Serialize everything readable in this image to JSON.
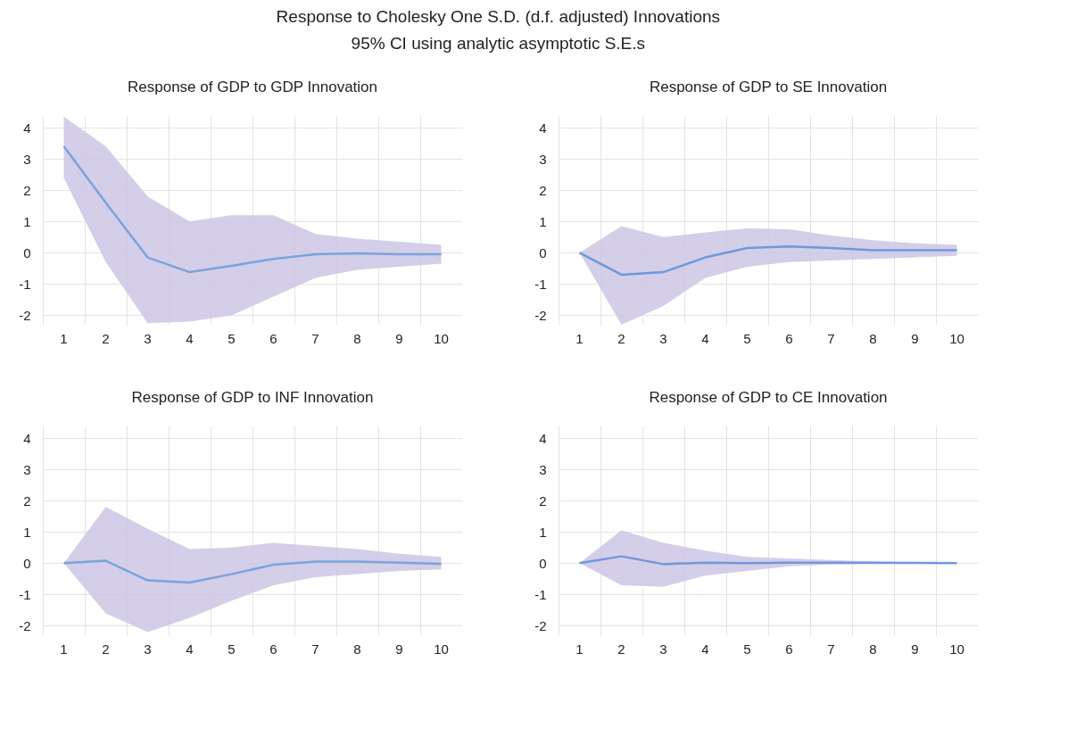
{
  "chart_data": [
    {
      "type": "line",
      "title": "Response of GDP to GDP Innovation",
      "annotations": [
        "Response to Cholesky One S.D. (d.f. adjusted) Innovations",
        "95% CI using analytic asymptotic S.E.s"
      ],
      "categories": [
        "1",
        "2",
        "3",
        "4",
        "5",
        "6",
        "7",
        "8",
        "9",
        "10"
      ],
      "ylim": [
        -2.3,
        4.4
      ],
      "yticks": [
        -2,
        -1,
        0,
        1,
        2,
        3,
        4
      ],
      "grid": true,
      "line_style": "solid",
      "marker": "none",
      "series": [
        {
          "color": "#7aa3dc",
          "values": [
            3.4,
            1.6,
            -0.15,
            -0.62,
            -0.42,
            -0.2,
            -0.05,
            -0.02,
            -0.05,
            -0.05
          ],
          "upper": [
            4.35,
            3.4,
            1.8,
            1.0,
            1.2,
            1.2,
            0.6,
            0.45,
            0.35,
            0.25
          ],
          "lower": [
            2.4,
            -0.3,
            -2.25,
            -2.2,
            -2.0,
            -1.4,
            -0.8,
            -0.55,
            -0.45,
            -0.35
          ]
        }
      ]
    },
    {
      "type": "line",
      "title": "Response of GDP to SE Innovation",
      "categories": [
        "1",
        "2",
        "3",
        "4",
        "5",
        "6",
        "7",
        "8",
        "9",
        "10"
      ],
      "ylim": [
        -2.3,
        4.4
      ],
      "yticks": [
        -2,
        -1,
        0,
        1,
        2,
        3,
        4
      ],
      "grid": true,
      "line_style": "solid",
      "marker": "none",
      "series": [
        {
          "color": "#6f98dc",
          "values": [
            0,
            -0.7,
            -0.62,
            -0.15,
            0.15,
            0.2,
            0.15,
            0.08,
            0.08,
            0.08
          ],
          "upper": [
            0,
            0.85,
            0.5,
            0.65,
            0.78,
            0.75,
            0.55,
            0.4,
            0.3,
            0.25
          ],
          "lower": [
            0,
            -2.3,
            -1.7,
            -0.8,
            -0.45,
            -0.3,
            -0.25,
            -0.2,
            -0.15,
            -0.1
          ]
        }
      ]
    },
    {
      "type": "line",
      "title": "Response of GDP to INF Innovation",
      "categories": [
        "1",
        "2",
        "3",
        "4",
        "5",
        "6",
        "7",
        "8",
        "9",
        "10"
      ],
      "ylim": [
        -2.3,
        4.4
      ],
      "yticks": [
        -2,
        -1,
        0,
        1,
        2,
        3,
        4
      ],
      "grid": true,
      "line_style": "solid",
      "marker": "none",
      "series": [
        {
          "color": "#7aa3dc",
          "values": [
            0,
            0.08,
            -0.55,
            -0.62,
            -0.35,
            -0.05,
            0.05,
            0.05,
            0.02,
            -0.02
          ],
          "upper": [
            0,
            1.8,
            1.1,
            0.45,
            0.5,
            0.65,
            0.55,
            0.45,
            0.3,
            0.2
          ],
          "lower": [
            0,
            -1.6,
            -2.2,
            -1.75,
            -1.2,
            -0.7,
            -0.45,
            -0.35,
            -0.25,
            -0.2
          ]
        }
      ]
    },
    {
      "type": "line",
      "title": "Response of GDP to CE Innovation",
      "categories": [
        "1",
        "2",
        "3",
        "4",
        "5",
        "6",
        "7",
        "8",
        "9",
        "10"
      ],
      "ylim": [
        -2.3,
        4.4
      ],
      "yticks": [
        -2,
        -1,
        0,
        1,
        2,
        3,
        4
      ],
      "grid": true,
      "line_style": "solid",
      "marker": "none",
      "series": [
        {
          "color": "#6f98dc",
          "values": [
            0,
            0.22,
            -0.03,
            0.02,
            0,
            0.02,
            0.02,
            0.02,
            0.01,
            0
          ],
          "upper": [
            0,
            1.05,
            0.65,
            0.4,
            0.2,
            0.15,
            0.1,
            0.05,
            0.03,
            0.02
          ],
          "lower": [
            0,
            -0.7,
            -0.75,
            -0.4,
            -0.25,
            -0.1,
            -0.05,
            -0.03,
            -0.02,
            -0.02
          ]
        }
      ]
    }
  ]
}
